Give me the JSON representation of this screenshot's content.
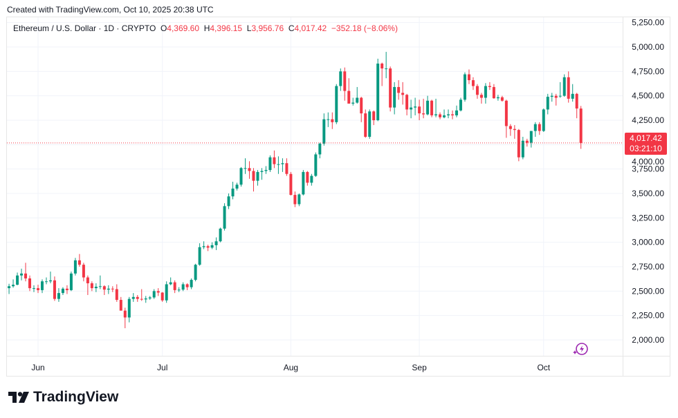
{
  "header": {
    "created": "Created with TradingView.com, Oct 10, 2025 20:38 UTC"
  },
  "legend": {
    "symbol": "Ethereum / U.S. Dollar · 1D · CRYPTO",
    "o_label": "O",
    "o": "4,369.60",
    "h_label": "H",
    "h": "4,396.15",
    "l_label": "L",
    "l": "3,956.76",
    "c_label": "C",
    "c": "4,017.42",
    "change": "−352.18 (−8.06%)"
  },
  "last_price": {
    "value": "4,017.42",
    "countdown": "03:21:10"
  },
  "logo": {
    "text": "TradingView"
  },
  "colors": {
    "up": "#089981",
    "down": "#f23645",
    "grid": "#f0f3fa"
  },
  "icons": {
    "assistant": "sparkle-bolt-icon"
  },
  "chart_data": {
    "type": "candlestick",
    "grid": true,
    "ylim": [
      1850,
      5300
    ],
    "y_ticks": [
      "2,000.00",
      "2,250.00",
      "2,500.00",
      "2,750.00",
      "3,000.00",
      "3,250.00",
      "3,500.00",
      "3,750.00",
      "4,000.00",
      "4,250.00",
      "4,500.00",
      "4,750.00",
      "5,000.00",
      "5,250.00"
    ],
    "y_tick_values": [
      2000,
      2250,
      2500,
      2750,
      3000,
      3250,
      3500,
      3750,
      4000,
      4250,
      4500,
      4750,
      5000,
      5250
    ],
    "x_ticks": [
      {
        "label": "Jun",
        "date": "2025-06-01"
      },
      {
        "label": "Jul",
        "date": "2025-07-01"
      },
      {
        "label": "Aug",
        "date": "2025-08-01"
      },
      {
        "label": "Sep",
        "date": "2025-09-01"
      },
      {
        "label": "Oct",
        "date": "2025-10-01"
      }
    ],
    "last_price": 4017.42,
    "columns": [
      "date",
      "open",
      "high",
      "low",
      "close"
    ],
    "candles": [
      [
        "2025-05-25",
        2530,
        2575,
        2470,
        2550
      ],
      [
        "2025-05-26",
        2550,
        2620,
        2535,
        2565
      ],
      [
        "2025-05-27",
        2565,
        2690,
        2560,
        2660
      ],
      [
        "2025-05-28",
        2660,
        2730,
        2610,
        2680
      ],
      [
        "2025-05-29",
        2680,
        2790,
        2600,
        2630
      ],
      [
        "2025-05-30",
        2630,
        2660,
        2500,
        2530
      ],
      [
        "2025-05-31",
        2530,
        2560,
        2490,
        2530
      ],
      [
        "2025-06-01",
        2530,
        2565,
        2480,
        2510
      ],
      [
        "2025-06-02",
        2510,
        2620,
        2480,
        2600
      ],
      [
        "2025-06-03",
        2600,
        2640,
        2570,
        2600
      ],
      [
        "2025-06-04",
        2600,
        2700,
        2580,
        2610
      ],
      [
        "2025-06-05",
        2610,
        2650,
        2400,
        2420
      ],
      [
        "2025-06-06",
        2420,
        2530,
        2390,
        2480
      ],
      [
        "2025-06-07",
        2480,
        2540,
        2460,
        2525
      ],
      [
        "2025-06-08",
        2525,
        2560,
        2470,
        2510
      ],
      [
        "2025-06-09",
        2510,
        2700,
        2500,
        2680
      ],
      [
        "2025-06-10",
        2680,
        2840,
        2660,
        2815
      ],
      [
        "2025-06-11",
        2815,
        2880,
        2750,
        2770
      ],
      [
        "2025-06-12",
        2770,
        2790,
        2600,
        2640
      ],
      [
        "2025-06-13",
        2640,
        2660,
        2460,
        2580
      ],
      [
        "2025-06-14",
        2580,
        2600,
        2500,
        2530
      ],
      [
        "2025-06-15",
        2530,
        2580,
        2490,
        2545
      ],
      [
        "2025-06-16",
        2545,
        2660,
        2520,
        2550
      ],
      [
        "2025-06-17",
        2550,
        2560,
        2460,
        2515
      ],
      [
        "2025-06-18",
        2515,
        2560,
        2470,
        2525
      ],
      [
        "2025-06-19",
        2525,
        2550,
        2490,
        2520
      ],
      [
        "2025-06-20",
        2520,
        2570,
        2390,
        2410
      ],
      [
        "2025-06-21",
        2410,
        2440,
        2320,
        2300
      ],
      [
        "2025-06-22",
        2300,
        2330,
        2120,
        2230
      ],
      [
        "2025-06-23",
        2230,
        2440,
        2180,
        2420
      ],
      [
        "2025-06-24",
        2420,
        2480,
        2390,
        2440
      ],
      [
        "2025-06-25",
        2440,
        2460,
        2390,
        2420
      ],
      [
        "2025-06-26",
        2420,
        2520,
        2400,
        2415
      ],
      [
        "2025-06-27",
        2415,
        2450,
        2380,
        2425
      ],
      [
        "2025-06-28",
        2425,
        2450,
        2410,
        2435
      ],
      [
        "2025-06-29",
        2435,
        2520,
        2420,
        2500
      ],
      [
        "2025-06-30",
        2500,
        2530,
        2450,
        2485
      ],
      [
        "2025-07-01",
        2485,
        2490,
        2390,
        2405
      ],
      [
        "2025-07-02",
        2405,
        2600,
        2380,
        2570
      ],
      [
        "2025-07-03",
        2570,
        2640,
        2560,
        2590
      ],
      [
        "2025-07-04",
        2590,
        2610,
        2480,
        2510
      ],
      [
        "2025-07-05",
        2510,
        2540,
        2490,
        2515
      ],
      [
        "2025-07-06",
        2515,
        2590,
        2500,
        2570
      ],
      [
        "2025-07-07",
        2570,
        2580,
        2510,
        2540
      ],
      [
        "2025-07-08",
        2540,
        2630,
        2520,
        2615
      ],
      [
        "2025-07-09",
        2615,
        2780,
        2600,
        2770
      ],
      [
        "2025-07-10",
        2770,
        2990,
        2760,
        2950
      ],
      [
        "2025-07-11",
        2950,
        3010,
        2930,
        2960
      ],
      [
        "2025-07-12",
        2960,
        2975,
        2910,
        2945
      ],
      [
        "2025-07-13",
        2945,
        3000,
        2930,
        2970
      ],
      [
        "2025-07-14",
        2970,
        3050,
        2920,
        3010
      ],
      [
        "2025-07-15",
        3010,
        3150,
        3000,
        3140
      ],
      [
        "2025-07-16",
        3140,
        3400,
        3120,
        3370
      ],
      [
        "2025-07-17",
        3370,
        3500,
        3340,
        3470
      ],
      [
        "2025-07-18",
        3470,
        3620,
        3440,
        3550
      ],
      [
        "2025-07-19",
        3550,
        3610,
        3530,
        3590
      ],
      [
        "2025-07-20",
        3590,
        3770,
        3570,
        3760
      ],
      [
        "2025-07-21",
        3760,
        3860,
        3700,
        3760
      ],
      [
        "2025-07-22",
        3760,
        3830,
        3650,
        3730
      ],
      [
        "2025-07-23",
        3730,
        3760,
        3520,
        3630
      ],
      [
        "2025-07-24",
        3630,
        3740,
        3580,
        3720
      ],
      [
        "2025-07-25",
        3720,
        3760,
        3640,
        3730
      ],
      [
        "2025-07-26",
        3730,
        3780,
        3700,
        3740
      ],
      [
        "2025-07-27",
        3740,
        3890,
        3720,
        3870
      ],
      [
        "2025-07-28",
        3870,
        3940,
        3760,
        3800
      ],
      [
        "2025-07-29",
        3800,
        3880,
        3700,
        3800
      ],
      [
        "2025-07-30",
        3800,
        3860,
        3720,
        3810
      ],
      [
        "2025-07-31",
        3810,
        3860,
        3680,
        3700
      ],
      [
        "2025-08-01",
        3700,
        3720,
        3480,
        3485
      ],
      [
        "2025-08-02",
        3485,
        3520,
        3360,
        3390
      ],
      [
        "2025-08-03",
        3390,
        3500,
        3370,
        3490
      ],
      [
        "2025-08-04",
        3490,
        3740,
        3480,
        3720
      ],
      [
        "2025-08-05",
        3720,
        3730,
        3580,
        3610
      ],
      [
        "2025-08-06",
        3610,
        3700,
        3580,
        3680
      ],
      [
        "2025-08-07",
        3680,
        3920,
        3670,
        3900
      ],
      [
        "2025-08-08",
        3900,
        4020,
        3860,
        4010
      ],
      [
        "2025-08-09",
        4010,
        4320,
        3990,
        4260
      ],
      [
        "2025-08-10",
        4260,
        4330,
        4180,
        4260
      ],
      [
        "2025-08-11",
        4260,
        4330,
        4160,
        4230
      ],
      [
        "2025-08-12",
        4230,
        4620,
        4210,
        4600
      ],
      [
        "2025-08-13",
        4600,
        4780,
        4550,
        4750
      ],
      [
        "2025-08-14",
        4750,
        4790,
        4450,
        4550
      ],
      [
        "2025-08-15",
        4550,
        4680,
        4420,
        4420
      ],
      [
        "2025-08-16",
        4420,
        4480,
        4400,
        4430
      ],
      [
        "2025-08-17",
        4430,
        4590,
        4420,
        4480
      ],
      [
        "2025-08-18",
        4480,
        4490,
        4230,
        4320
      ],
      [
        "2025-08-19",
        4320,
        4360,
        4070,
        4080
      ],
      [
        "2025-08-20",
        4080,
        4360,
        4060,
        4340
      ],
      [
        "2025-08-21",
        4340,
        4350,
        4200,
        4250
      ],
      [
        "2025-08-22",
        4250,
        4880,
        4240,
        4830
      ],
      [
        "2025-08-23",
        4830,
        4840,
        4600,
        4780
      ],
      [
        "2025-08-24",
        4780,
        4950,
        4680,
        4780
      ],
      [
        "2025-08-25",
        4780,
        4800,
        4340,
        4380
      ],
      [
        "2025-08-26",
        4380,
        4640,
        4310,
        4590
      ],
      [
        "2025-08-27",
        4590,
        4660,
        4460,
        4530
      ],
      [
        "2025-08-28",
        4530,
        4640,
        4410,
        4510
      ],
      [
        "2025-08-29",
        4510,
        4520,
        4300,
        4360
      ],
      [
        "2025-08-30",
        4360,
        4460,
        4270,
        4380
      ],
      [
        "2025-08-31",
        4380,
        4480,
        4300,
        4390
      ],
      [
        "2025-09-01",
        4390,
        4460,
        4250,
        4320
      ],
      [
        "2025-09-02",
        4320,
        4470,
        4270,
        4310
      ],
      [
        "2025-09-03",
        4310,
        4500,
        4300,
        4450
      ],
      [
        "2025-09-04",
        4450,
        4460,
        4280,
        4300
      ],
      [
        "2025-09-05",
        4300,
        4470,
        4280,
        4310
      ],
      [
        "2025-09-06",
        4310,
        4330,
        4260,
        4280
      ],
      [
        "2025-09-07",
        4280,
        4360,
        4270,
        4300
      ],
      [
        "2025-09-08",
        4300,
        4360,
        4270,
        4310
      ],
      [
        "2025-09-09",
        4310,
        4350,
        4260,
        4300
      ],
      [
        "2025-09-10",
        4300,
        4400,
        4280,
        4350
      ],
      [
        "2025-09-11",
        4350,
        4480,
        4340,
        4460
      ],
      [
        "2025-09-12",
        4460,
        4740,
        4440,
        4720
      ],
      [
        "2025-09-13",
        4720,
        4770,
        4620,
        4660
      ],
      [
        "2025-09-14",
        4660,
        4690,
        4560,
        4600
      ],
      [
        "2025-09-15",
        4600,
        4620,
        4470,
        4510
      ],
      [
        "2025-09-16",
        4510,
        4530,
        4420,
        4480
      ],
      [
        "2025-09-17",
        4480,
        4630,
        4420,
        4600
      ],
      [
        "2025-09-18",
        4600,
        4640,
        4560,
        4590
      ],
      [
        "2025-09-19",
        4590,
        4620,
        4470,
        4475
      ],
      [
        "2025-09-20",
        4475,
        4510,
        4450,
        4485
      ],
      [
        "2025-09-21",
        4485,
        4500,
        4440,
        4450
      ],
      [
        "2025-09-22",
        4450,
        4460,
        4070,
        4190
      ],
      [
        "2025-09-23",
        4190,
        4210,
        4090,
        4160
      ],
      [
        "2025-09-24",
        4160,
        4200,
        4060,
        4150
      ],
      [
        "2025-09-25",
        4150,
        4160,
        3830,
        3870
      ],
      [
        "2025-09-26",
        3870,
        4080,
        3850,
        4040
      ],
      [
        "2025-09-27",
        4040,
        4060,
        3980,
        4020
      ],
      [
        "2025-09-28",
        4020,
        4140,
        3970,
        4140
      ],
      [
        "2025-09-29",
        4140,
        4230,
        4080,
        4210
      ],
      [
        "2025-09-30",
        4210,
        4230,
        4100,
        4140
      ],
      [
        "2025-10-01",
        4140,
        4370,
        4130,
        4360
      ],
      [
        "2025-10-02",
        4360,
        4520,
        4310,
        4490
      ],
      [
        "2025-10-03",
        4490,
        4530,
        4440,
        4500
      ],
      [
        "2025-10-04",
        4500,
        4520,
        4400,
        4480
      ],
      [
        "2025-10-05",
        4500,
        4640,
        4480,
        4500
      ],
      [
        "2025-10-06",
        4500,
        4720,
        4490,
        4690
      ],
      [
        "2025-10-07",
        4690,
        4750,
        4430,
        4470
      ],
      [
        "2025-10-08",
        4470,
        4620,
        4440,
        4520
      ],
      [
        "2025-10-09",
        4520,
        4530,
        4270,
        4370
      ],
      [
        "2025-10-10",
        4369.6,
        4396.15,
        3956.76,
        4017.42
      ]
    ]
  }
}
